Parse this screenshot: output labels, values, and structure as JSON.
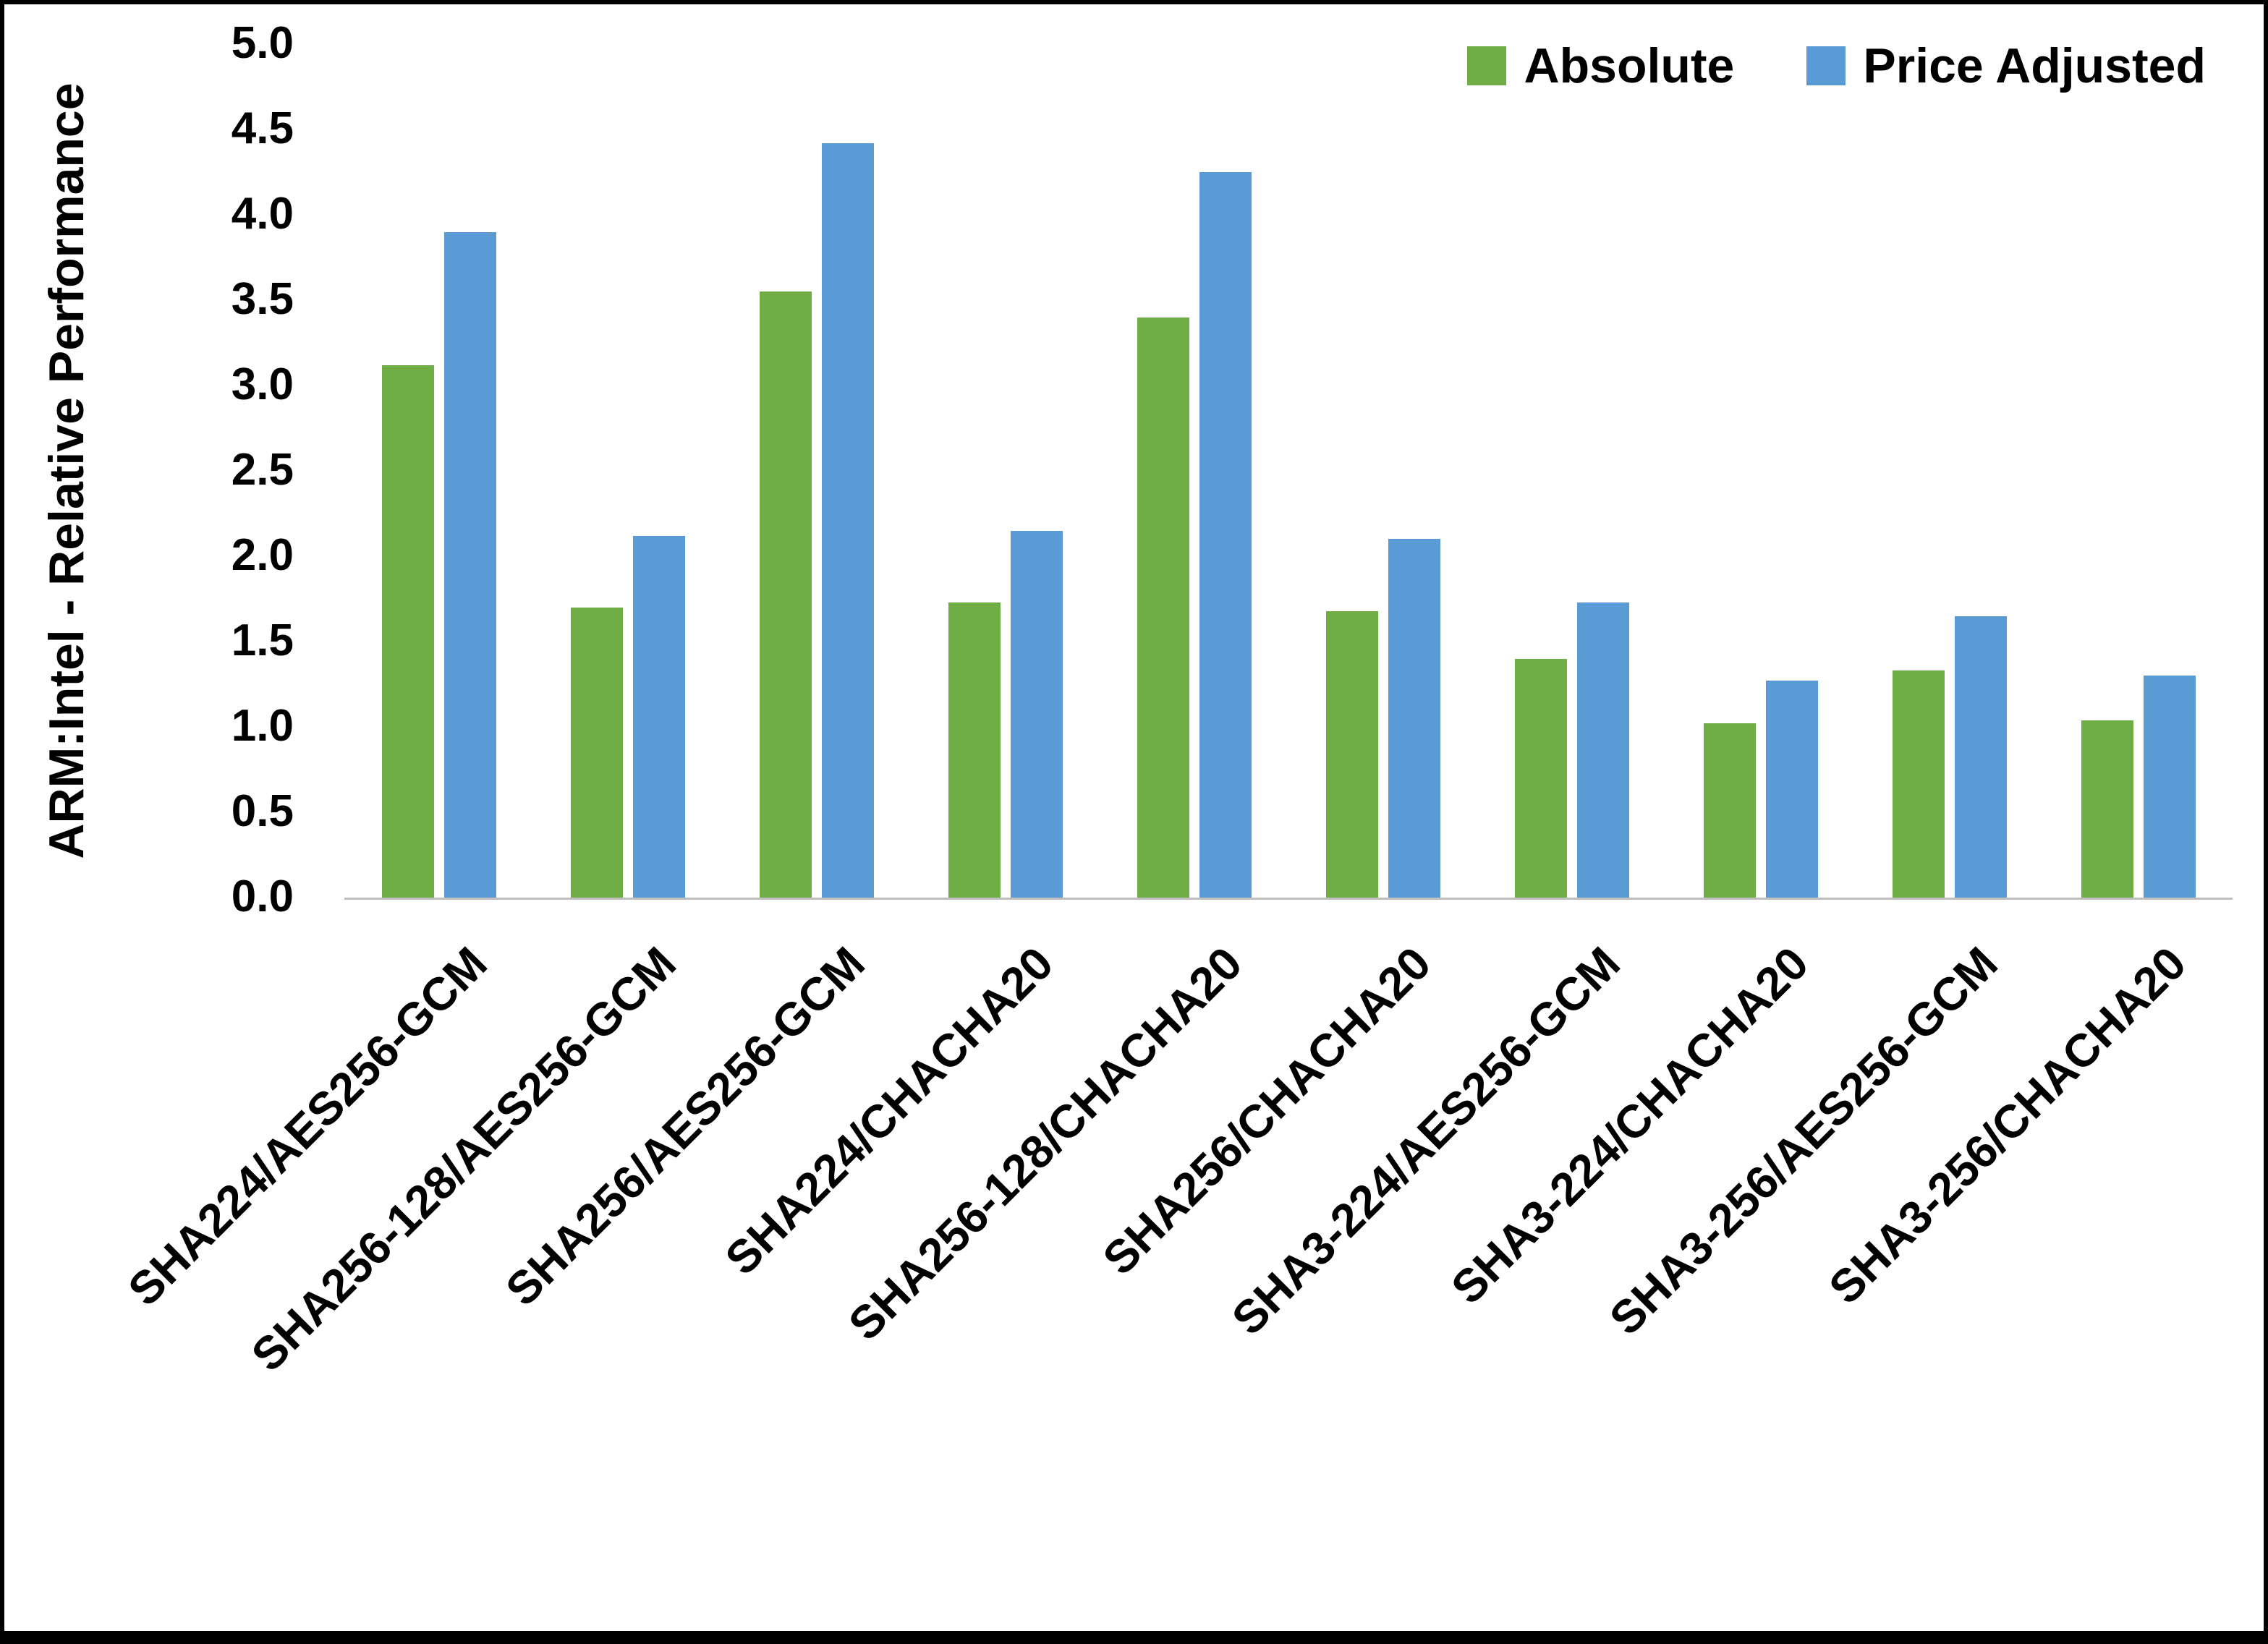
{
  "chart_data": {
    "type": "bar",
    "title": "",
    "xlabel": "",
    "ylabel": "ARM:Intel - Relative Performance",
    "ylim": [
      0,
      5
    ],
    "ytick_step": 0.5,
    "grid": false,
    "legend_position": "top-right",
    "axis_line_color": "#BFBFBF",
    "text_color": "#000000",
    "categories": [
      "SHA224/AES256-GCM",
      "SHA256-128/AES256-GCM",
      "SHA256/AES256-GCM",
      "SHA224/CHACHA20",
      "SHA256-128/CHACHA20",
      "SHA256/CHACHA20",
      "SHA3-224/AES256-GCM",
      "SHA3-224/CHACHA20",
      "SHA3-256/AES256-GCM",
      "SHA3-256/CHACHA20"
    ],
    "series": [
      {
        "name": "Absolute",
        "color": "#70AD47",
        "values": [
          3.12,
          1.7,
          3.55,
          1.73,
          3.4,
          1.68,
          1.4,
          1.02,
          1.33,
          1.04
        ]
      },
      {
        "name": "Price Adjusted",
        "color": "#5B9BD5",
        "values": [
          3.9,
          2.12,
          4.42,
          2.15,
          4.25,
          2.1,
          1.73,
          1.27,
          1.65,
          1.3
        ]
      }
    ]
  }
}
